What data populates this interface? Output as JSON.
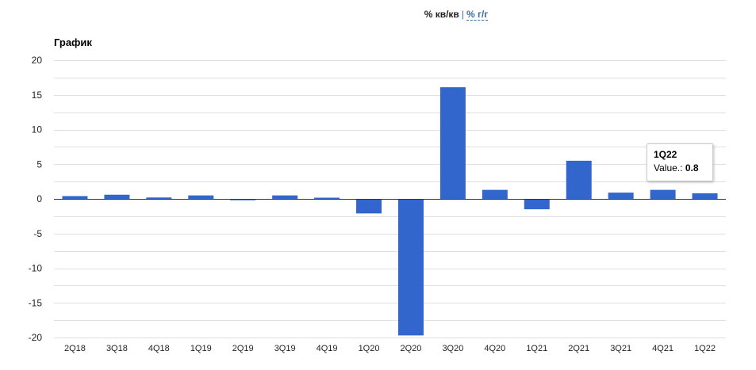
{
  "toggle": {
    "active": "% кв/кв",
    "separator": "|",
    "link": "% г/г"
  },
  "chart_title": "График",
  "tooltip": {
    "category": "1Q22",
    "label": "Value.:",
    "value": "0.8"
  },
  "colors": {
    "bar": "#3366cc",
    "grid": "#e0e0e0",
    "axis": "#333333"
  },
  "chart_data": {
    "type": "bar",
    "categories": [
      "2Q18",
      "3Q18",
      "4Q18",
      "1Q19",
      "2Q19",
      "3Q19",
      "4Q19",
      "1Q20",
      "2Q20",
      "3Q20",
      "4Q20",
      "1Q21",
      "2Q21",
      "3Q21",
      "4Q21",
      "1Q22"
    ],
    "values": [
      0.4,
      0.6,
      0.2,
      0.5,
      -0.2,
      0.5,
      0.0,
      -2.1,
      -19.7,
      16.1,
      1.3,
      -1.5,
      5.5,
      0.9,
      1.3,
      0.8
    ],
    "ylim": [
      -20,
      20
    ],
    "yticks": [
      20,
      15,
      10,
      5,
      0,
      -5,
      -10,
      -15,
      -20
    ],
    "grid": true,
    "legend": "none"
  }
}
